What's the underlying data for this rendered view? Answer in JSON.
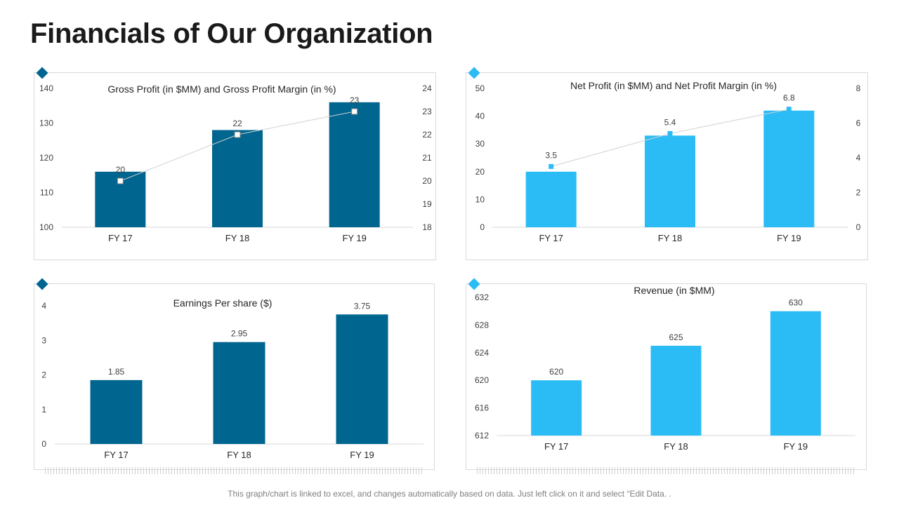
{
  "title": "Financials of Our Organization",
  "footer": "This graph/chart is linked to excel, and changes automatically based on data. Just left click on it and select “Edit Data. .",
  "colors": {
    "dark_blue": "#00668f",
    "light_blue": "#2cbcf5",
    "axis": "#d9d9d9",
    "text": "#404040",
    "line": "#d0d0d0"
  },
  "chart_data": [
    {
      "type": "bar",
      "title": "Gross Profit (in $MM)  and Gross Profit Margin  (in %)",
      "categories": [
        "FY 17",
        "FY 18",
        "FY 19"
      ],
      "series": [
        {
          "name": "Gross Profit (in $MM)",
          "type": "bar",
          "axis": "left",
          "values": [
            116,
            128,
            136
          ]
        },
        {
          "name": "Gross Profit Margin (in %)",
          "type": "line",
          "axis": "right",
          "values": [
            20,
            22,
            23
          ],
          "labels": [
            "20",
            "22",
            "23"
          ]
        }
      ],
      "ylim": [
        100,
        140
      ],
      "yticks": [
        "100",
        "110",
        "120",
        "130",
        "140"
      ],
      "y2lim": [
        18,
        24
      ],
      "y2ticks": [
        "18",
        "19",
        "20",
        "21",
        "22",
        "23",
        "24"
      ],
      "color": "#00668f"
    },
    {
      "type": "bar",
      "title": "Net Profit (in $MM)  and Net Profit Margin  (in %)",
      "categories": [
        "FY 17",
        "FY 18",
        "FY 19"
      ],
      "series": [
        {
          "name": "Net Profit (in $MM)",
          "type": "bar",
          "axis": "left",
          "values": [
            20,
            33,
            42
          ]
        },
        {
          "name": "Net Profit Margin (in %)",
          "type": "line",
          "axis": "right",
          "values": [
            3.5,
            5.4,
            6.8
          ],
          "labels": [
            "3.5",
            "5.4",
            "6.8"
          ]
        }
      ],
      "ylim": [
        0,
        50
      ],
      "yticks": [
        "0",
        "10",
        "20",
        "30",
        "40",
        "50"
      ],
      "y2lim": [
        0,
        8
      ],
      "y2ticks": [
        "0",
        "2",
        "4",
        "6",
        "8"
      ],
      "color": "#2cbcf5"
    },
    {
      "type": "bar",
      "title": "Earnings Per share ($)",
      "categories": [
        "FY 17",
        "FY 18",
        "FY 19"
      ],
      "series": [
        {
          "name": "Earnings Per share ($)",
          "type": "bar",
          "axis": "left",
          "values": [
            1.85,
            2.95,
            3.75
          ],
          "labels": [
            "1.85",
            "2.95",
            "3.75"
          ]
        }
      ],
      "ylim": [
        0,
        4
      ],
      "yticks": [
        "0",
        "1",
        "2",
        "3",
        "4"
      ],
      "color": "#00668f"
    },
    {
      "type": "bar",
      "title": "Revenue (in $MM)",
      "categories": [
        "FY 17",
        "FY 18",
        "FY 19"
      ],
      "series": [
        {
          "name": "Revenue (in $MM)",
          "type": "bar",
          "axis": "left",
          "values": [
            620,
            625,
            630
          ],
          "labels": [
            "620",
            "625",
            "630"
          ]
        }
      ],
      "ylim": [
        612,
        632
      ],
      "yticks": [
        "612",
        "616",
        "620",
        "624",
        "628",
        "632"
      ],
      "color": "#2cbcf5"
    }
  ]
}
